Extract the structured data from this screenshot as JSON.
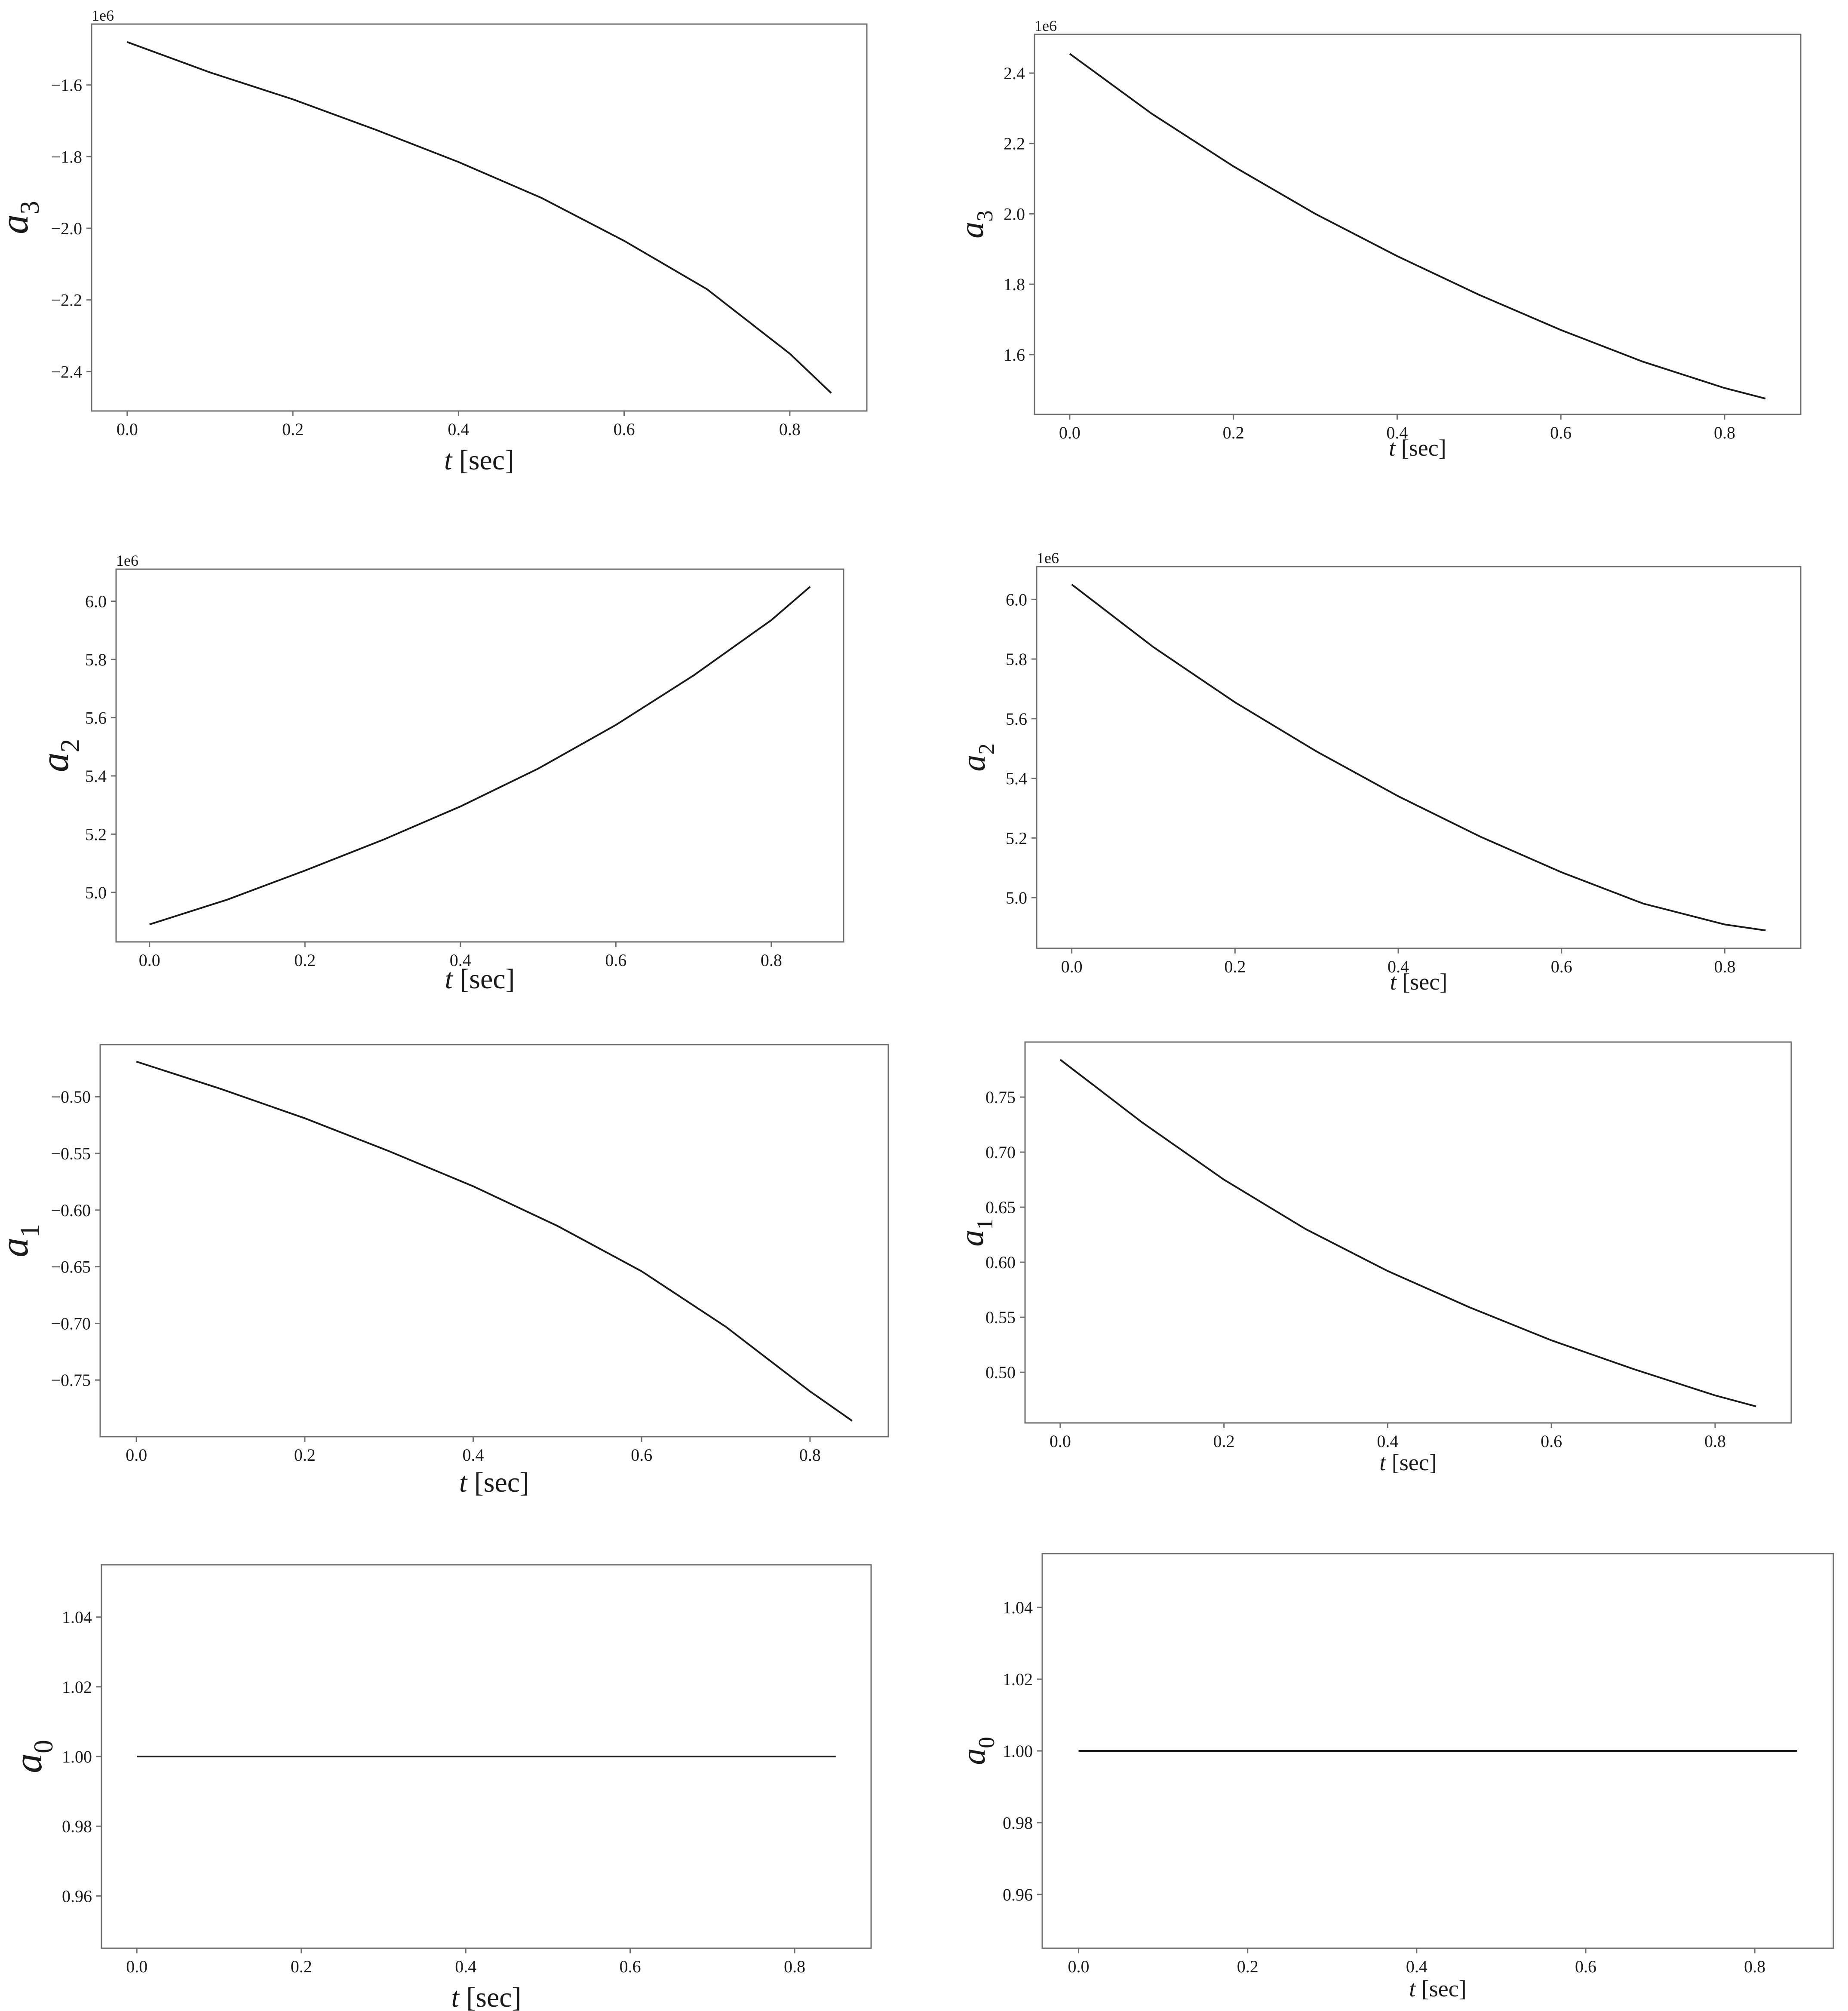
{
  "colors": {
    "line": "#1a1a1a",
    "frame": "#6e6e6e",
    "background": "#ffffff"
  },
  "chart_data": [
    {
      "id": "left-a3",
      "type": "line",
      "ylabel": {
        "sym": "a",
        "sub": "3"
      },
      "xlabel": {
        "var": "t",
        "unit": "[sec]"
      },
      "offset_text": "1e6",
      "x": [
        0.0,
        0.1,
        0.2,
        0.3,
        0.4,
        0.5,
        0.6,
        0.7,
        0.8,
        0.85
      ],
      "values": [
        -1.48,
        -1.565,
        -1.64,
        -1.725,
        -1.815,
        -1.915,
        -2.035,
        -2.17,
        -2.35,
        -2.46
      ],
      "xlim": [
        -0.043,
        0.893
      ],
      "ylim": [
        -2.51,
        -1.43
      ],
      "xticks": [
        0.0,
        0.2,
        0.4,
        0.6,
        0.8
      ],
      "xtick_labels": [
        "0.0",
        "0.2",
        "0.4",
        "0.6",
        "0.8"
      ],
      "yticks": [
        -1.6,
        -1.8,
        -2.0,
        -2.2,
        -2.4
      ],
      "ytick_labels": [
        "−1.6",
        "−1.8",
        "−2.0",
        "−2.2",
        "−2.4"
      ]
    },
    {
      "id": "right-a3",
      "type": "line",
      "ylabel": {
        "sym": "a",
        "sub": "3"
      },
      "xlabel": {
        "var": "t",
        "unit": "[sec]"
      },
      "offset_text": "1e6",
      "x": [
        0.0,
        0.1,
        0.2,
        0.3,
        0.4,
        0.5,
        0.6,
        0.7,
        0.8,
        0.85
      ],
      "values": [
        2.455,
        2.285,
        2.135,
        2.0,
        1.88,
        1.77,
        1.67,
        1.58,
        1.505,
        1.475
      ],
      "xlim": [
        -0.043,
        0.893
      ],
      "ylim": [
        1.43,
        2.51
      ],
      "xticks": [
        0.0,
        0.2,
        0.4,
        0.6,
        0.8
      ],
      "xtick_labels": [
        "0.0",
        "0.2",
        "0.4",
        "0.6",
        "0.8"
      ],
      "yticks": [
        1.6,
        1.8,
        2.0,
        2.2,
        2.4
      ],
      "ytick_labels": [
        "1.6",
        "1.8",
        "2.0",
        "2.2",
        "2.4"
      ]
    },
    {
      "id": "left-a2",
      "type": "line",
      "ylabel": {
        "sym": "a",
        "sub": "2"
      },
      "xlabel": {
        "var": "t",
        "unit": "[sec]"
      },
      "offset_text": "1e6",
      "x": [
        0.0,
        0.1,
        0.2,
        0.3,
        0.4,
        0.5,
        0.6,
        0.7,
        0.8,
        0.85
      ],
      "values": [
        4.89,
        4.975,
        5.075,
        5.18,
        5.295,
        5.425,
        5.575,
        5.745,
        5.935,
        6.05
      ],
      "xlim": [
        -0.043,
        0.893
      ],
      "ylim": [
        4.83,
        6.11
      ],
      "xticks": [
        0.0,
        0.2,
        0.4,
        0.6,
        0.8
      ],
      "xtick_labels": [
        "0.0",
        "0.2",
        "0.4",
        "0.6",
        "0.8"
      ],
      "yticks": [
        5.0,
        5.2,
        5.4,
        5.6,
        5.8,
        6.0
      ],
      "ytick_labels": [
        "5.0",
        "5.2",
        "5.4",
        "5.6",
        "5.8",
        "6.0"
      ]
    },
    {
      "id": "right-a2",
      "type": "line",
      "ylabel": {
        "sym": "a",
        "sub": "2"
      },
      "xlabel": {
        "var": "t",
        "unit": "[sec]"
      },
      "offset_text": "1e6",
      "x": [
        0.0,
        0.1,
        0.2,
        0.3,
        0.4,
        0.5,
        0.6,
        0.7,
        0.8,
        0.85
      ],
      "values": [
        6.05,
        5.84,
        5.655,
        5.49,
        5.34,
        5.205,
        5.085,
        4.98,
        4.91,
        4.89
      ],
      "xlim": [
        -0.043,
        0.893
      ],
      "ylim": [
        4.83,
        6.11
      ],
      "xticks": [
        0.0,
        0.2,
        0.4,
        0.6,
        0.8
      ],
      "xtick_labels": [
        "0.0",
        "0.2",
        "0.4",
        "0.6",
        "0.8"
      ],
      "yticks": [
        5.0,
        5.2,
        5.4,
        5.6,
        5.8,
        6.0
      ],
      "ytick_labels": [
        "5.0",
        "5.2",
        "5.4",
        "5.6",
        "5.8",
        "6.0"
      ]
    },
    {
      "id": "left-a1",
      "type": "line",
      "ylabel": {
        "sym": "a",
        "sub": "1"
      },
      "xlabel": {
        "var": "t",
        "unit": "[sec]"
      },
      "offset_text": "",
      "x": [
        0.0,
        0.1,
        0.2,
        0.3,
        0.4,
        0.5,
        0.6,
        0.7,
        0.8,
        0.85
      ],
      "values": [
        -0.469,
        -0.493,
        -0.519,
        -0.548,
        -0.579,
        -0.614,
        -0.654,
        -0.703,
        -0.76,
        -0.786
      ],
      "xlim": [
        -0.043,
        0.893
      ],
      "ylim": [
        -0.8,
        -0.454
      ],
      "xticks": [
        0.0,
        0.2,
        0.4,
        0.6,
        0.8
      ],
      "xtick_labels": [
        "0.0",
        "0.2",
        "0.4",
        "0.6",
        "0.8"
      ],
      "yticks": [
        -0.5,
        -0.55,
        -0.6,
        -0.65,
        -0.7,
        -0.75
      ],
      "ytick_labels": [
        "−0.50",
        "−0.55",
        "−0.60",
        "−0.65",
        "−0.70",
        "−0.75"
      ]
    },
    {
      "id": "right-a1",
      "type": "line",
      "ylabel": {
        "sym": "a",
        "sub": "1"
      },
      "xlabel": {
        "var": "t",
        "unit": "[sec]"
      },
      "offset_text": "",
      "x": [
        0.0,
        0.1,
        0.2,
        0.3,
        0.4,
        0.5,
        0.6,
        0.7,
        0.8,
        0.85
      ],
      "values": [
        0.784,
        0.727,
        0.675,
        0.63,
        0.592,
        0.559,
        0.529,
        0.503,
        0.479,
        0.469
      ],
      "xlim": [
        -0.043,
        0.893
      ],
      "ylim": [
        0.454,
        0.8
      ],
      "xticks": [
        0.0,
        0.2,
        0.4,
        0.6,
        0.8
      ],
      "xtick_labels": [
        "0.0",
        "0.2",
        "0.4",
        "0.6",
        "0.8"
      ],
      "yticks": [
        0.5,
        0.55,
        0.6,
        0.65,
        0.7,
        0.75
      ],
      "ytick_labels": [
        "0.50",
        "0.55",
        "0.60",
        "0.65",
        "0.70",
        "0.75"
      ]
    },
    {
      "id": "left-a0",
      "type": "line",
      "ylabel": {
        "sym": "a",
        "sub": "0"
      },
      "xlabel": {
        "var": "t",
        "unit": "[sec]"
      },
      "offset_text": "",
      "x": [
        0.0,
        0.85
      ],
      "values": [
        1.0,
        1.0
      ],
      "xlim": [
        -0.043,
        0.893
      ],
      "ylim": [
        0.945,
        1.055
      ],
      "xticks": [
        0.0,
        0.2,
        0.4,
        0.6,
        0.8
      ],
      "xtick_labels": [
        "0.0",
        "0.2",
        "0.4",
        "0.6",
        "0.8"
      ],
      "yticks": [
        0.96,
        0.98,
        1.0,
        1.02,
        1.04
      ],
      "ytick_labels": [
        "0.96",
        "0.98",
        "1.00",
        "1.02",
        "1.04"
      ]
    },
    {
      "id": "right-a0",
      "type": "line",
      "ylabel": {
        "sym": "a",
        "sub": "0"
      },
      "xlabel": {
        "var": "t",
        "unit": "[sec]"
      },
      "offset_text": "",
      "x": [
        0.0,
        0.85
      ],
      "values": [
        1.0,
        1.0
      ],
      "xlim": [
        -0.043,
        0.893
      ],
      "ylim": [
        0.945,
        1.055
      ],
      "xticks": [
        0.0,
        0.2,
        0.4,
        0.6,
        0.8
      ],
      "xtick_labels": [
        "0.0",
        "0.2",
        "0.4",
        "0.6",
        "0.8"
      ],
      "yticks": [
        0.96,
        0.98,
        1.0,
        1.02,
        1.04
      ],
      "ytick_labels": [
        "0.96",
        "0.98",
        "1.00",
        "1.02",
        "1.04"
      ]
    }
  ]
}
